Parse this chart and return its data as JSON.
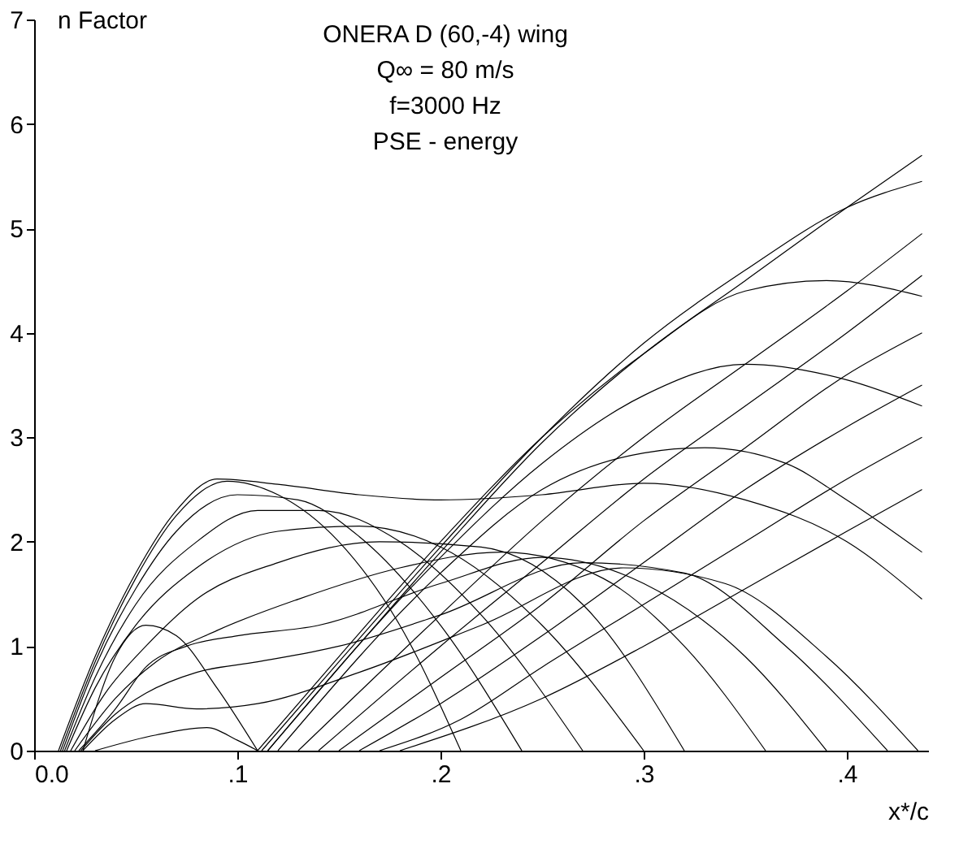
{
  "chart_data": {
    "type": "line",
    "title": "ONERA D (60,-4) wing",
    "annotations": [
      "Q∞ = 80 m/s",
      "f=3000 Hz",
      "PSE - energy"
    ],
    "xlabel": "x*/c",
    "ylabel": "n Factor",
    "xlim": [
      0,
      0.44
    ],
    "ylim": [
      0,
      7
    ],
    "xticks": [
      {
        "value": 0,
        "label": "0.0"
      },
      {
        "value": 0.1,
        "label": ".1"
      },
      {
        "value": 0.2,
        "label": ".2"
      },
      {
        "value": 0.3,
        "label": ".3"
      },
      {
        "value": 0.4,
        "label": ".4"
      }
    ],
    "yticks": [
      0,
      1,
      2,
      3,
      4,
      5,
      6,
      7
    ],
    "grid": false,
    "legend": false,
    "marker": "none",
    "line_style": "solid",
    "series": [
      {
        "color": "#000000",
        "x": [
          0.012,
          0.03,
          0.05,
          0.07,
          0.09,
          0.12,
          0.16,
          0.2,
          0.25,
          0.3,
          0.35,
          0.4,
          0.437
        ],
        "values": [
          0,
          0.9,
          1.7,
          2.3,
          2.6,
          2.55,
          2.45,
          2.4,
          2.45,
          2.56,
          2.4,
          2.0,
          1.45
        ]
      },
      {
        "color": "#000000",
        "x": [
          0.013,
          0.03,
          0.05,
          0.07,
          0.095,
          0.12,
          0.15,
          0.18,
          0.21
        ],
        "values": [
          0,
          0.85,
          1.65,
          2.25,
          2.58,
          2.45,
          2.0,
          1.2,
          0
        ]
      },
      {
        "color": "#000000",
        "x": [
          0.014,
          0.03,
          0.05,
          0.07,
          0.1,
          0.13,
          0.16,
          0.2,
          0.24
        ],
        "values": [
          0,
          0.8,
          1.55,
          2.1,
          2.45,
          2.4,
          2.05,
          1.2,
          0
        ]
      },
      {
        "color": "#000000",
        "x": [
          0.015,
          0.03,
          0.05,
          0.08,
          0.11,
          0.14,
          0.18,
          0.22,
          0.27
        ],
        "values": [
          0,
          0.7,
          1.4,
          2.0,
          2.3,
          2.3,
          2.0,
          1.3,
          0
        ]
      },
      {
        "color": "#000000",
        "x": [
          0.016,
          0.03,
          0.05,
          0.08,
          0.12,
          0.16,
          0.2,
          0.25,
          0.3
        ],
        "values": [
          0,
          0.6,
          1.2,
          1.75,
          2.1,
          2.15,
          1.95,
          1.2,
          0
        ]
      },
      {
        "color": "#000000",
        "x": [
          0.018,
          0.035,
          0.055,
          0.08,
          0.12,
          0.17,
          0.22,
          0.27,
          0.32
        ],
        "values": [
          0,
          0.55,
          1.0,
          1.45,
          1.8,
          2.0,
          1.95,
          1.4,
          0
        ]
      },
      {
        "color": "#000000",
        "x": [
          0.02,
          0.04,
          0.06,
          0.09,
          0.13,
          0.18,
          0.23,
          0.28,
          0.32,
          0.36
        ],
        "values": [
          0,
          0.5,
          0.85,
          1.15,
          1.45,
          1.75,
          1.9,
          1.65,
          1.0,
          0
        ]
      },
      {
        "color": "#000000",
        "x": [
          0.022,
          0.04,
          0.055,
          0.075,
          0.1,
          0.14,
          0.2,
          0.25,
          0.3,
          0.35,
          0.39
        ],
        "values": [
          0,
          0.4,
          0.8,
          1.0,
          1.1,
          1.2,
          1.6,
          1.85,
          1.6,
          0.9,
          0
        ]
      },
      {
        "color": "#000000",
        "x": [
          0.023,
          0.04,
          0.055,
          0.08,
          0.11,
          0.15,
          0.2,
          0.27,
          0.32,
          0.37,
          0.42
        ],
        "values": [
          0,
          0.35,
          0.55,
          0.75,
          0.85,
          1.0,
          1.3,
          1.8,
          1.7,
          1.0,
          0
        ]
      },
      {
        "color": "#000000",
        "x": [
          0.024,
          0.04,
          0.055,
          0.08,
          0.11,
          0.16,
          0.22,
          0.29,
          0.34,
          0.39,
          0.435
        ],
        "values": [
          0,
          0.3,
          0.45,
          0.4,
          0.45,
          0.75,
          1.2,
          1.75,
          1.6,
          0.9,
          0
        ]
      },
      {
        "color": "#000000",
        "x": [
          0.024,
          0.04,
          0.055,
          0.07,
          0.09,
          0.11
        ],
        "values": [
          0,
          0.9,
          1.2,
          1.1,
          0.6,
          0
        ]
      },
      {
        "color": "#000000",
        "x": [
          0.03,
          0.06,
          0.085,
          0.1,
          0.11
        ],
        "values": [
          0,
          0.15,
          0.22,
          0.1,
          0
        ]
      },
      {
        "color": "#000000",
        "x": [
          0.11,
          0.15,
          0.2,
          0.25,
          0.3,
          0.35,
          0.39,
          0.437
        ],
        "values": [
          0,
          0.9,
          2.0,
          3.0,
          3.8,
          4.4,
          4.5,
          4.35
        ]
      },
      {
        "color": "#000000",
        "x": [
          0.112,
          0.15,
          0.2,
          0.25,
          0.3,
          0.35,
          0.4,
          0.437
        ],
        "values": [
          0,
          0.85,
          1.95,
          3.0,
          3.9,
          4.6,
          5.2,
          5.45
        ]
      },
      {
        "color": "#000000",
        "x": [
          0.115,
          0.2,
          0.25,
          0.3,
          0.35,
          0.4,
          0.437
        ],
        "values": [
          0,
          1.9,
          2.95,
          3.8,
          4.5,
          5.2,
          5.7
        ]
      },
      {
        "color": "#000000",
        "x": [
          0.115,
          0.2,
          0.25,
          0.3,
          0.35,
          0.4,
          0.437
        ],
        "values": [
          0,
          1.85,
          2.75,
          3.4,
          3.7,
          3.55,
          3.3
        ]
      },
      {
        "color": "#000000",
        "x": [
          0.12,
          0.2,
          0.25,
          0.3,
          0.33,
          0.37,
          0.4,
          0.437
        ],
        "values": [
          0,
          1.7,
          2.5,
          2.85,
          2.9,
          2.75,
          2.4,
          1.9
        ]
      },
      {
        "color": "#000000",
        "x": [
          0.13,
          0.2,
          0.25,
          0.3,
          0.35,
          0.4,
          0.437
        ],
        "values": [
          0,
          1.3,
          2.2,
          3.0,
          3.7,
          4.4,
          4.95
        ]
      },
      {
        "color": "#000000",
        "x": [
          0.14,
          0.2,
          0.25,
          0.3,
          0.35,
          0.4,
          0.437
        ],
        "values": [
          0,
          1.0,
          1.8,
          2.6,
          3.3,
          4.0,
          4.55
        ]
      },
      {
        "color": "#000000",
        "x": [
          0.15,
          0.2,
          0.25,
          0.3,
          0.35,
          0.4,
          0.437
        ],
        "values": [
          0,
          0.7,
          1.4,
          2.2,
          2.9,
          3.6,
          4.0
        ]
      },
      {
        "color": "#000000",
        "x": [
          0.16,
          0.2,
          0.25,
          0.3,
          0.35,
          0.4,
          0.437
        ],
        "values": [
          0,
          0.45,
          1.1,
          1.8,
          2.5,
          3.1,
          3.5
        ]
      },
      {
        "color": "#000000",
        "x": [
          0.17,
          0.21,
          0.25,
          0.3,
          0.35,
          0.4,
          0.437
        ],
        "values": [
          0,
          0.3,
          0.8,
          1.4,
          2.0,
          2.6,
          3.0
        ]
      },
      {
        "color": "#000000",
        "x": [
          0.18,
          0.25,
          0.3,
          0.35,
          0.4,
          0.437
        ],
        "values": [
          0,
          0.5,
          1.0,
          1.55,
          2.1,
          2.5
        ]
      }
    ]
  }
}
